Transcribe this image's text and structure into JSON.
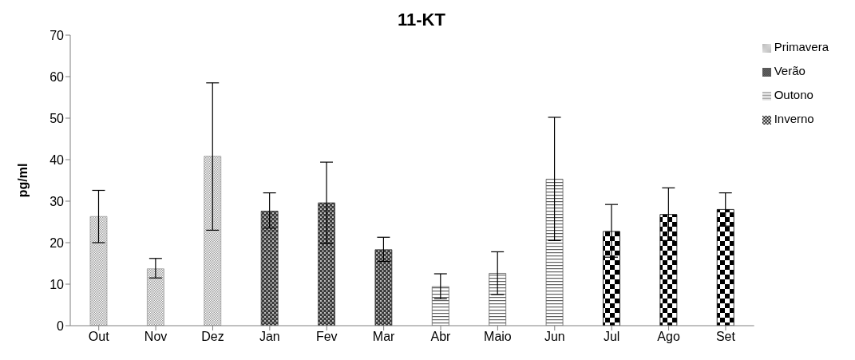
{
  "chart_data": {
    "type": "bar",
    "title": "11-KT",
    "ylabel": "pg/ml",
    "categories": [
      "Out",
      "Nov",
      "Dez",
      "Jan",
      "Fev",
      "Mar",
      "Abr",
      "Maio",
      "Jun",
      "Jul",
      "Ago",
      "Set"
    ],
    "stacked": true,
    "ylim": [
      0,
      70
    ],
    "yticks": [
      0,
      10,
      20,
      30,
      40,
      50,
      60,
      70
    ],
    "grid": false,
    "legend": "top right",
    "series": [
      {
        "name": "Primavera",
        "color": "#9a9a9a",
        "values": [
          26.3,
          13.7,
          40.8,
          null,
          null,
          null,
          null,
          null,
          null,
          null,
          null,
          null
        ],
        "errors": [
          [
            20,
            32.6
          ],
          [
            11.5,
            16.2
          ],
          [
            23,
            58.5
          ],
          null,
          null,
          null,
          null,
          null,
          null,
          null,
          null,
          null
        ]
      },
      {
        "name": "Verão",
        "color": "#3a3a3a",
        "values": [
          null,
          null,
          null,
          27.6,
          29.6,
          18.3,
          null,
          null,
          null,
          null,
          null,
          null
        ],
        "errors": [
          null,
          null,
          null,
          [
            23.5,
            32
          ],
          [
            19.8,
            39.4
          ],
          [
            15.5,
            21.3
          ],
          null,
          null,
          null,
          null,
          null,
          null
        ]
      },
      {
        "name": "Outono",
        "color": "#606060",
        "values": [
          null,
          null,
          null,
          null,
          null,
          null,
          9.4,
          12.6,
          35.3,
          null,
          null,
          null
        ],
        "errors": [
          null,
          null,
          null,
          null,
          null,
          null,
          [
            6.5,
            12.5
          ],
          [
            7.5,
            17.8
          ],
          [
            20.5,
            50.2
          ],
          null,
          null,
          null
        ]
      },
      {
        "name": "Inverno",
        "color": "#000000",
        "values": [
          null,
          null,
          null,
          null,
          null,
          null,
          null,
          null,
          null,
          22.7,
          26.8,
          28
        ],
        "errors": [
          null,
          null,
          null,
          null,
          null,
          null,
          null,
          null,
          null,
          [
            16.5,
            29.2
          ],
          [
            20.5,
            33.2
          ],
          [
            24,
            32
          ]
        ]
      }
    ]
  }
}
